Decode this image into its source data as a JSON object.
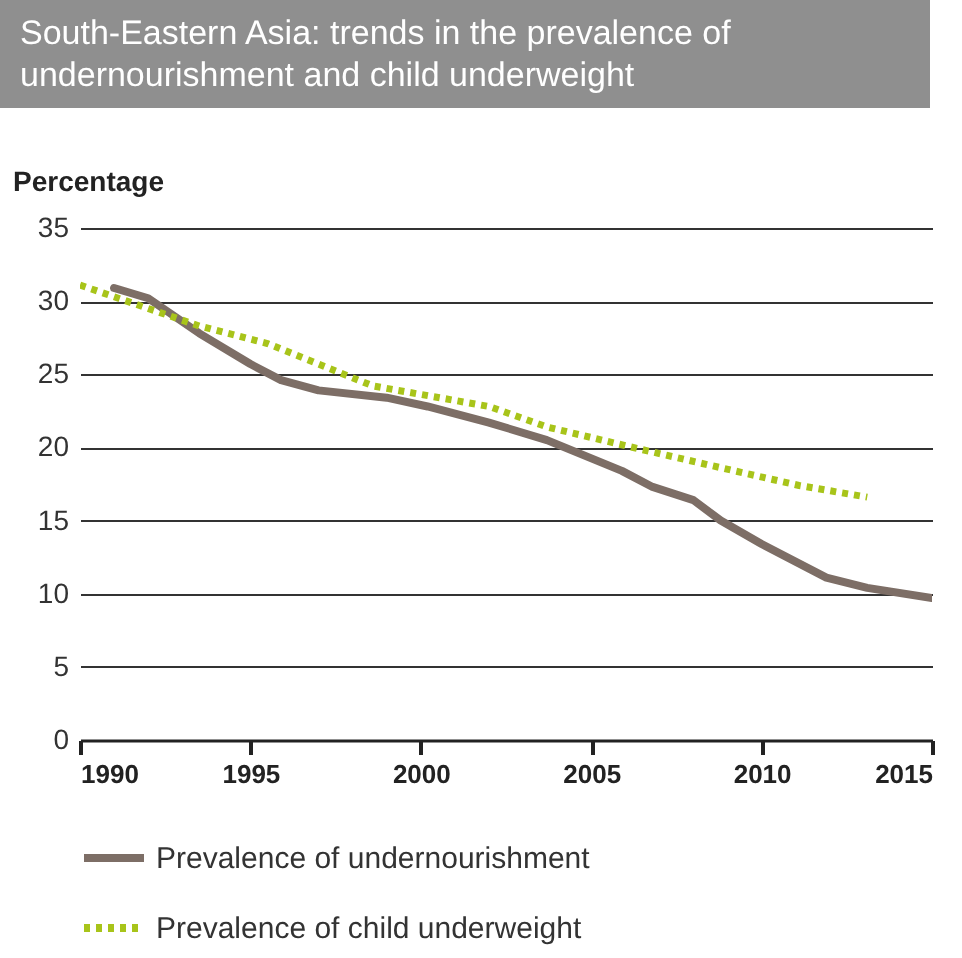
{
  "chart_data": {
    "type": "line",
    "title": "South-Eastern Asia: trends in the prevalence of undernourishment and child underweight",
    "ylabel": "Percentage",
    "xlim": [
      1990,
      2015
    ],
    "xticks": [
      1990,
      1995,
      2000,
      2005,
      2010,
      2015
    ],
    "ylim": [
      0,
      35
    ],
    "yticks": [
      0,
      5,
      10,
      15,
      20,
      25,
      30,
      35
    ],
    "grid": "y",
    "legend": "bottom",
    "series": [
      {
        "name": "Prevalence of undernourishment",
        "color": "#7d6e66",
        "line_style": "solid",
        "x": [
          1991,
          1992,
          1993.5,
          1995,
          1995.9,
          1997,
          1999,
          2000.2,
          2002,
          2003.7,
          2005.9,
          2006.8,
          2008,
          2008.8,
          2010,
          2011.9,
          2013.1,
          2015
        ],
        "values": [
          30.9,
          30.2,
          27.8,
          25.7,
          24.6,
          23.9,
          23.4,
          22.8,
          21.7,
          20.5,
          18.4,
          17.3,
          16.4,
          15.0,
          13.4,
          11.1,
          10.4,
          9.7
        ]
      },
      {
        "name": "Prevalence of child underweight",
        "color": "#a8c41a",
        "line_style": "dotted",
        "x": [
          1990,
          1993.5,
          1995.5,
          1998.6,
          2002,
          2003.7,
          2006.4,
          2009.2,
          2011.1,
          2013.1
        ],
        "values": [
          31.1,
          28.3,
          27.1,
          24.2,
          22.8,
          21.4,
          19.9,
          18.4,
          17.4,
          16.6
        ]
      }
    ]
  }
}
